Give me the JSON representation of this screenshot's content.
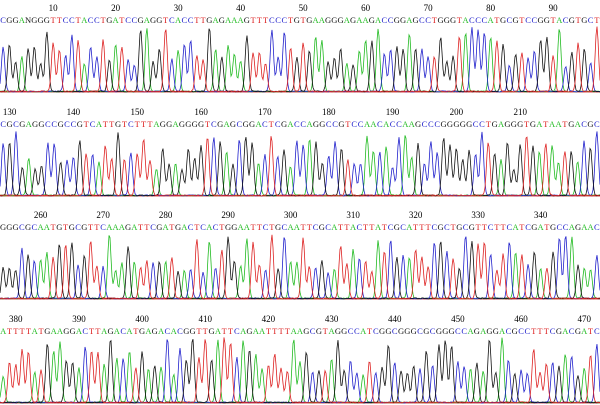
{
  "base_colors": {
    "A": "#22bb22",
    "C": "#2222cc",
    "G": "#111111",
    "T": "#dd2222",
    "N": "#111111"
  },
  "rows": [
    {
      "sequence": "CGGANGGGTTCCTACCTGATCCGAGGTCACCTTGAGAAAGTTTCCCTGTGAAGGGAGAAGACCGGAGCCTGGGTACCCATGCGTCCGGTACGTGCT",
      "ticks": [
        {
          "label": "10",
          "pos": 8
        },
        {
          "label": "20",
          "pos": 18
        },
        {
          "label": "30",
          "pos": 28
        },
        {
          "label": "40",
          "pos": 38
        },
        {
          "label": "50",
          "pos": 48
        },
        {
          "label": "60",
          "pos": 58
        },
        {
          "label": "70",
          "pos": 68
        },
        {
          "label": "80",
          "pos": 78
        },
        {
          "label": "90",
          "pos": 88
        }
      ]
    },
    {
      "sequence": "CGCGAGGCCGCCGTCATTGTCTTTAGGAGGGGTCGAGCGGACTCGACCAGGCCGTCCAACACCAAGCCCGGGGGCCTGAGGGTGATAATGACGC",
      "ticks": [
        {
          "label": "130",
          "pos": 1
        },
        {
          "label": "140",
          "pos": 11
        },
        {
          "label": "150",
          "pos": 21
        },
        {
          "label": "160",
          "pos": 31
        },
        {
          "label": "170",
          "pos": 41
        },
        {
          "label": "180",
          "pos": 51
        },
        {
          "label": "190",
          "pos": 61
        },
        {
          "label": "200",
          "pos": 71
        },
        {
          "label": "210",
          "pos": 81
        }
      ]
    },
    {
      "sequence": "GGGCGCAATGTGCGTTCAAAGATTCGATGACTCACTGGAATTCTGCAATTCGCATTACTTATCGCATTTCGCTGCGTTCTTCATCGATGCCAGAAC",
      "ticks": [
        {
          "label": "260",
          "pos": 6
        },
        {
          "label": "270",
          "pos": 16
        },
        {
          "label": "280",
          "pos": 26
        },
        {
          "label": "290",
          "pos": 36
        },
        {
          "label": "300",
          "pos": 46
        },
        {
          "label": "310",
          "pos": 56
        },
        {
          "label": "320",
          "pos": 66
        },
        {
          "label": "330",
          "pos": 76
        },
        {
          "label": "340",
          "pos": 86
        }
      ]
    },
    {
      "sequence": "ATTTTATGAAGGACTTAGACATGAGACACGGTTGATTCAGAATTTTAAGCGTAGGCCATCGGCGGGCGCGGGCCAGAGGACGCCTTTCGACGATC",
      "ticks": [
        {
          "label": "380",
          "pos": 2
        },
        {
          "label": "390",
          "pos": 12
        },
        {
          "label": "400",
          "pos": 22
        },
        {
          "label": "410",
          "pos": 32
        },
        {
          "label": "420",
          "pos": 42
        },
        {
          "label": "430",
          "pos": 52
        },
        {
          "label": "440",
          "pos": 62
        },
        {
          "label": "450",
          "pos": 72
        },
        {
          "label": "460",
          "pos": 82
        },
        {
          "label": "470",
          "pos": 92
        }
      ]
    }
  ]
}
